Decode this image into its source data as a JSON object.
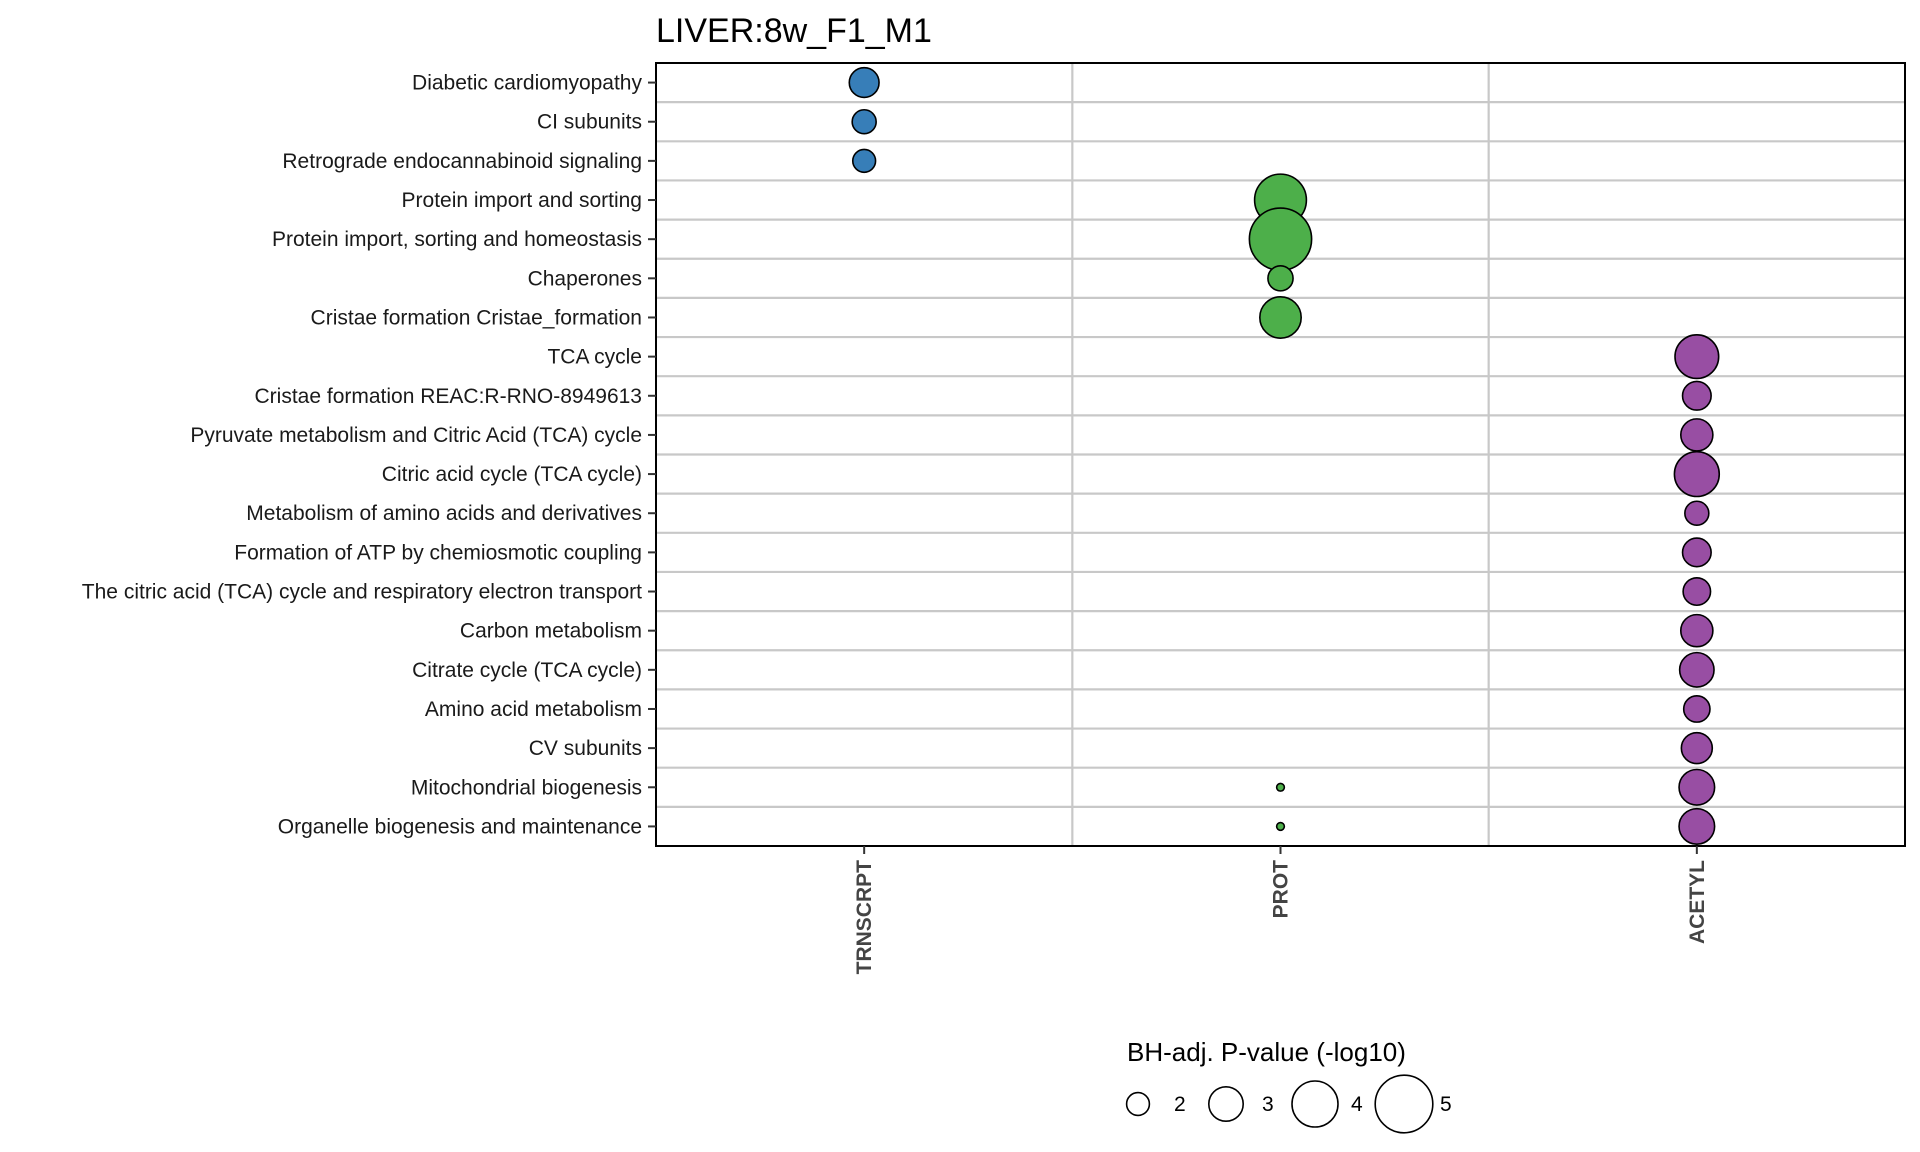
{
  "chart_data": {
    "type": "scatter",
    "title": "LIVER:8w_F1_M1",
    "xlabel": "",
    "ylabel": "",
    "categories": [
      "TRNSCRPT",
      "PROT",
      "ACETYL"
    ],
    "pathways": [
      "Diabetic cardiomyopathy",
      "CI subunits",
      "Retrograde endocannabinoid signaling",
      "Protein import and sorting",
      "Protein import, sorting and homeostasis",
      "Chaperones",
      "Cristae formation Cristae_formation",
      "TCA cycle",
      "Cristae formation REAC:R-RNO-8949613",
      "Pyruvate metabolism and Citric Acid (TCA) cycle",
      "Citric acid cycle (TCA cycle)",
      "Metabolism of amino acids and derivatives",
      "Formation of ATP by chemiosmotic coupling",
      "The citric acid (TCA) cycle and respiratory electron transport",
      "Carbon metabolism",
      "Citrate cycle (TCA cycle)",
      "Amino acid metabolism",
      "CV subunits",
      "Mitochondrial biogenesis",
      "Organelle biogenesis and maintenance"
    ],
    "colors": {
      "TRNSCRPT": "#377eb8",
      "PROT": "#4daf4a",
      "ACETYL": "#984ea3"
    },
    "points": [
      {
        "pathway": 0,
        "assay": "TRNSCRPT",
        "value": 2.6
      },
      {
        "pathway": 1,
        "assay": "TRNSCRPT",
        "value": 2.1
      },
      {
        "pathway": 2,
        "assay": "TRNSCRPT",
        "value": 2.0
      },
      {
        "pathway": 3,
        "assay": "PROT",
        "value": 4.5
      },
      {
        "pathway": 4,
        "assay": "PROT",
        "value": 5.4
      },
      {
        "pathway": 5,
        "assay": "PROT",
        "value": 2.2
      },
      {
        "pathway": 6,
        "assay": "PROT",
        "value": 3.6
      },
      {
        "pathway": 7,
        "assay": "ACETYL",
        "value": 3.8
      },
      {
        "pathway": 8,
        "assay": "ACETYL",
        "value": 2.5
      },
      {
        "pathway": 9,
        "assay": "ACETYL",
        "value": 2.8
      },
      {
        "pathway": 10,
        "assay": "ACETYL",
        "value": 3.9
      },
      {
        "pathway": 11,
        "assay": "ACETYL",
        "value": 2.1
      },
      {
        "pathway": 12,
        "assay": "ACETYL",
        "value": 2.5
      },
      {
        "pathway": 13,
        "assay": "ACETYL",
        "value": 2.4
      },
      {
        "pathway": 14,
        "assay": "ACETYL",
        "value": 2.8
      },
      {
        "pathway": 15,
        "assay": "ACETYL",
        "value": 3.0
      },
      {
        "pathway": 16,
        "assay": "ACETYL",
        "value": 2.3
      },
      {
        "pathway": 17,
        "assay": "ACETYL",
        "value": 2.7
      },
      {
        "pathway": 18,
        "assay": "ACETYL",
        "value": 3.1
      },
      {
        "pathway": 18,
        "assay": "PROT",
        "value": 0.7
      },
      {
        "pathway": 19,
        "assay": "ACETYL",
        "value": 3.1
      },
      {
        "pathway": 19,
        "assay": "PROT",
        "value": 0.7
      }
    ],
    "size_legend": {
      "title": "BH-adj. P-value (-log10)",
      "values": [
        2,
        3,
        4,
        5
      ],
      "labels": [
        "2",
        "3",
        "4",
        "5"
      ]
    },
    "grid": true,
    "legend_position": "bottom"
  }
}
